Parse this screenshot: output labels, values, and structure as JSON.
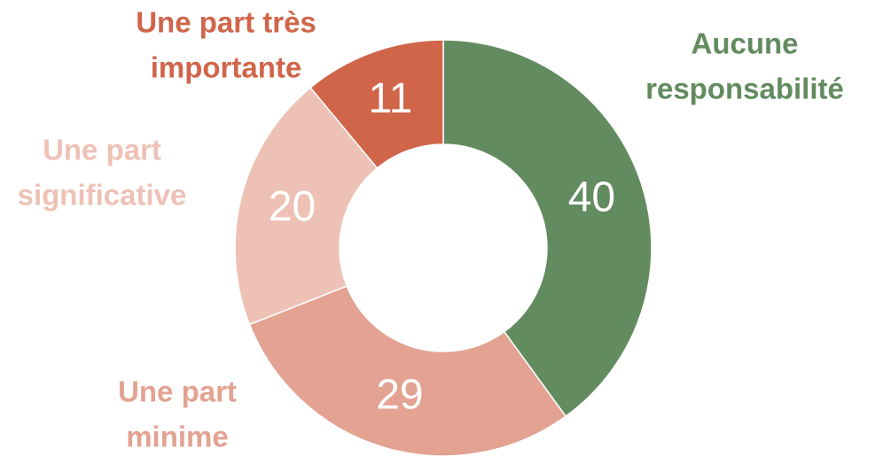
{
  "chart_data": {
    "type": "donut",
    "categories": [
      [
        "Aucune",
        "responsabilité"
      ],
      [
        "Une part",
        "minime"
      ],
      [
        "Une part",
        "significative"
      ],
      [
        "Une part très",
        "importante"
      ]
    ],
    "values": [
      40,
      29,
      20,
      11
    ],
    "colors": [
      "#628b5f",
      "#e3a292",
      "#eec1b6",
      "#d0654a"
    ]
  }
}
